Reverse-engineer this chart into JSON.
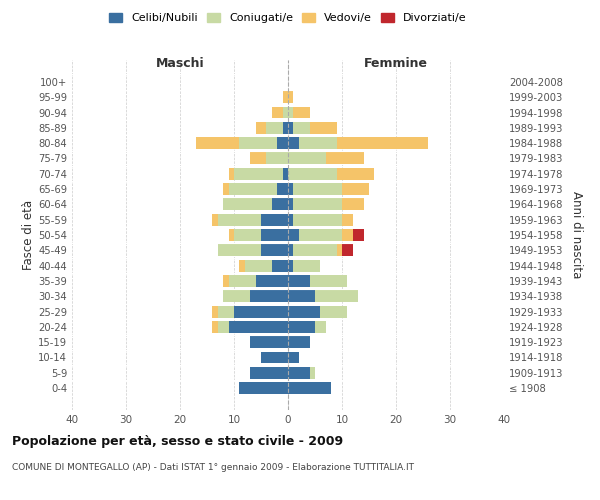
{
  "age_groups": [
    "100+",
    "95-99",
    "90-94",
    "85-89",
    "80-84",
    "75-79",
    "70-74",
    "65-69",
    "60-64",
    "55-59",
    "50-54",
    "45-49",
    "40-44",
    "35-39",
    "30-34",
    "25-29",
    "20-24",
    "15-19",
    "10-14",
    "5-9",
    "0-4"
  ],
  "birth_years": [
    "≤ 1908",
    "1909-1913",
    "1914-1918",
    "1919-1923",
    "1924-1928",
    "1929-1933",
    "1934-1938",
    "1939-1943",
    "1944-1948",
    "1949-1953",
    "1954-1958",
    "1959-1963",
    "1964-1968",
    "1969-1973",
    "1974-1978",
    "1979-1983",
    "1984-1988",
    "1989-1993",
    "1994-1998",
    "1999-2003",
    "2004-2008"
  ],
  "maschi": {
    "celibi": [
      0,
      0,
      0,
      1,
      2,
      0,
      1,
      2,
      3,
      5,
      5,
      5,
      3,
      6,
      7,
      10,
      11,
      7,
      5,
      7,
      9
    ],
    "coniugati": [
      0,
      0,
      1,
      3,
      7,
      4,
      9,
      9,
      9,
      8,
      5,
      8,
      5,
      5,
      5,
      3,
      2,
      0,
      0,
      0,
      0
    ],
    "vedovi": [
      0,
      1,
      2,
      2,
      8,
      3,
      1,
      1,
      0,
      1,
      1,
      0,
      1,
      1,
      0,
      1,
      1,
      0,
      0,
      0,
      0
    ],
    "divorziati": [
      0,
      0,
      0,
      0,
      0,
      0,
      0,
      0,
      0,
      0,
      0,
      0,
      0,
      0,
      0,
      0,
      0,
      0,
      0,
      0,
      0
    ]
  },
  "femmine": {
    "nubili": [
      0,
      0,
      0,
      1,
      2,
      0,
      0,
      1,
      1,
      1,
      2,
      1,
      1,
      4,
      5,
      6,
      5,
      4,
      2,
      4,
      8
    ],
    "coniugate": [
      0,
      0,
      1,
      3,
      7,
      7,
      9,
      9,
      9,
      9,
      8,
      8,
      5,
      7,
      8,
      5,
      2,
      0,
      0,
      1,
      0
    ],
    "vedove": [
      0,
      1,
      3,
      5,
      17,
      7,
      7,
      5,
      4,
      2,
      2,
      1,
      0,
      0,
      0,
      0,
      0,
      0,
      0,
      0,
      0
    ],
    "divorziate": [
      0,
      0,
      0,
      0,
      0,
      0,
      0,
      0,
      0,
      0,
      2,
      2,
      0,
      0,
      0,
      0,
      0,
      0,
      0,
      0,
      0
    ]
  },
  "colors": {
    "celibi_nubili": "#3a6fa0",
    "coniugati": "#c8daa4",
    "vedovi": "#f5c469",
    "divorziati": "#c0272d"
  },
  "xlim": [
    -40,
    40
  ],
  "xticks": [
    -40,
    -30,
    -20,
    -10,
    0,
    10,
    20,
    30,
    40
  ],
  "xticklabels": [
    "40",
    "30",
    "20",
    "10",
    "0",
    "10",
    "20",
    "30",
    "40"
  ],
  "title": "Popolazione per età, sesso e stato civile - 2009",
  "subtitle": "COMUNE DI MONTEGALLO (AP) - Dati ISTAT 1° gennaio 2009 - Elaborazione TUTTITALIA.IT",
  "ylabel_left": "Fasce di età",
  "ylabel_right": "Anni di nascita",
  "label_maschi": "Maschi",
  "label_femmine": "Femmine",
  "legend_labels": [
    "Celibi/Nubili",
    "Coniugati/e",
    "Vedovi/e",
    "Divorziati/e"
  ],
  "background_color": "#ffffff",
  "grid_color": "#cccccc"
}
